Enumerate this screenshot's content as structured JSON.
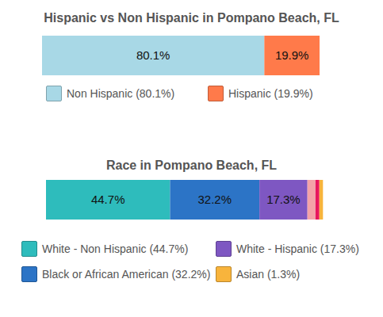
{
  "chart_data": [
    {
      "type": "bar",
      "title": "Hispanic vs Non Hispanic in Pompano Beach, FL",
      "orientation": "horizontal",
      "stacked": true,
      "data_labels": true,
      "tick_labels": false,
      "legend": "bottom",
      "categories": [
        null
      ],
      "xlim": [
        0,
        100
      ],
      "series": [
        {
          "name": "Non Hispanic (80.1%)",
          "color": "#a8d8e6",
          "values": [
            80.1
          ],
          "value_labels": [
            "80.1%"
          ]
        },
        {
          "name": "Hispanic (19.9%)",
          "color": "#ff7a4a",
          "values": [
            19.9
          ],
          "value_labels": [
            "19.9%"
          ]
        }
      ]
    },
    {
      "type": "bar",
      "title": "Race in Pompano Beach, FL",
      "orientation": "horizontal",
      "stacked": true,
      "data_labels": true,
      "tick_labels": false,
      "legend": "bottom",
      "categories": [
        null
      ],
      "xlim": [
        0,
        100
      ],
      "series": [
        {
          "name": "White - Non Hispanic (44.7%)",
          "color": "#2ebcbc",
          "values": [
            44.7
          ],
          "value_labels": [
            "44.7%"
          ]
        },
        {
          "name": "Black or African American (32.2%)",
          "color": "#2c74c6",
          "values": [
            32.2
          ],
          "value_labels": [
            "32.2%"
          ]
        },
        {
          "name": "White - Hispanic (17.3%)",
          "color": "#7e57c2",
          "values": [
            17.3
          ],
          "value_labels": [
            "17.3%"
          ]
        },
        {
          "name": null,
          "color": "#f4a3a8",
          "values": [
            2.9
          ],
          "value_labels": [
            null
          ]
        },
        {
          "name": null,
          "color": "#e8175d",
          "values": [
            1.4
          ],
          "value_labels": [
            null
          ]
        },
        {
          "name": "Asian (1.3%)",
          "color": "#f8b43c",
          "values": [
            1.3
          ],
          "value_labels": [
            null
          ]
        }
      ]
    }
  ]
}
